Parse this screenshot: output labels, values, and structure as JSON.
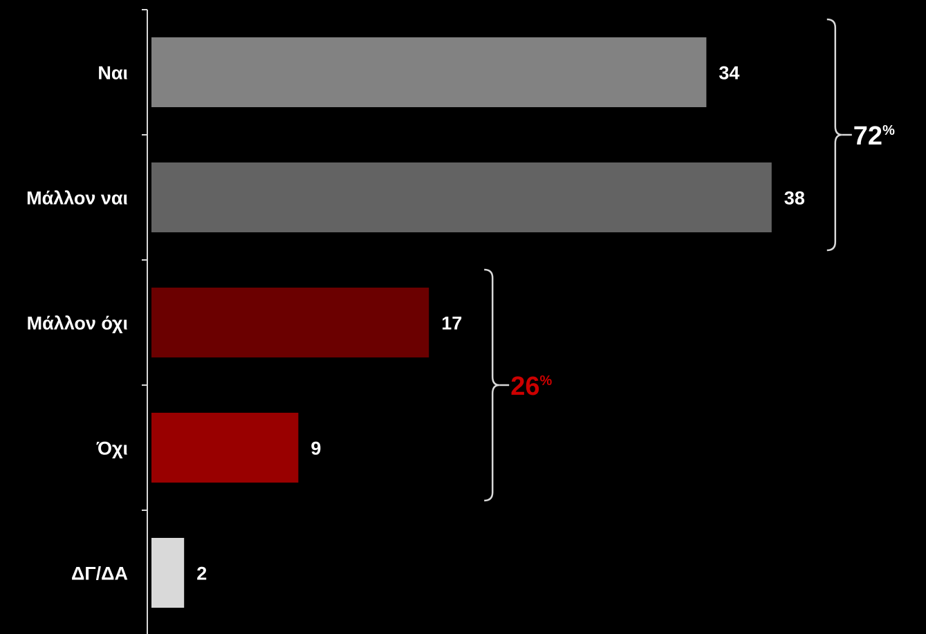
{
  "chart_data": {
    "type": "bar",
    "orientation": "horizontal",
    "categories": [
      "Ναι",
      "Μάλλον ναι",
      "Μάλλον όχι",
      "Όχι",
      "ΔΓ/ΔΑ"
    ],
    "values": [
      34,
      38,
      17,
      9,
      2
    ],
    "value_labels": [
      "34",
      "38",
      "17",
      "9",
      "2"
    ],
    "colors": [
      "#828282",
      "#636363",
      "#6b0000",
      "#990000",
      "#d9d9d9"
    ],
    "xlim": [
      0,
      40
    ],
    "grid": false,
    "legend": "none",
    "groups": [
      {
        "categories": [
          "Ναι",
          "Μάλλον ναι"
        ],
        "total": "72",
        "unit": "%",
        "color": "#ffffff"
      },
      {
        "categories": [
          "Μάλλον όχι",
          "Όχι"
        ],
        "total": "26",
        "unit": "%",
        "color": "#cc0000"
      }
    ]
  }
}
